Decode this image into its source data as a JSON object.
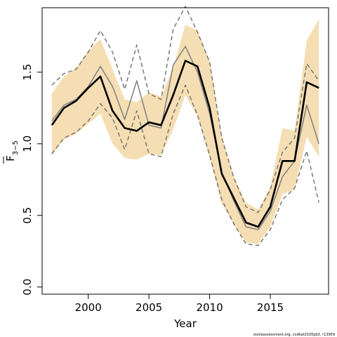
{
  "chart_data": {
    "type": "line",
    "xlabel": "Year",
    "ylabel": {
      "main": "F",
      "subscript": "3−5"
    },
    "xlim": [
      1996.2,
      2019.8
    ],
    "ylim": [
      -0.05,
      1.95
    ],
    "xticks": [
      2000,
      2005,
      2010,
      2015
    ],
    "yticks": [
      0.0,
      0.5,
      1.0,
      1.5
    ],
    "xtick_labels": [
      "2000",
      "2005",
      "2010",
      "2015"
    ],
    "ytick_labels": [
      "0.0",
      "0.5",
      "1.0",
      "1.5"
    ],
    "years": [
      1997,
      1998,
      1999,
      2000,
      2001,
      2002,
      2003,
      2004,
      2005,
      2006,
      2007,
      2008,
      2009,
      2010,
      2011,
      2012,
      2013,
      2014,
      2015,
      2016,
      2017,
      2018,
      2019
    ],
    "series": [
      {
        "role": "band",
        "color": "#f5deb3",
        "lower": [
          0.92,
          1.03,
          1.07,
          1.14,
          1.21,
          1.0,
          0.9,
          0.89,
          0.93,
          0.92,
          1.1,
          1.34,
          1.19,
          0.9,
          0.58,
          0.44,
          0.31,
          0.3,
          0.42,
          0.65,
          0.68,
          1.05,
          0.91
        ],
        "upper": [
          1.35,
          1.47,
          1.53,
          1.65,
          1.73,
          1.52,
          1.31,
          1.29,
          1.36,
          1.33,
          1.53,
          1.83,
          1.79,
          1.58,
          1.06,
          0.77,
          0.59,
          0.54,
          0.7,
          1.11,
          1.09,
          1.72,
          1.87
        ]
      },
      {
        "role": "dashed-upper",
        "color": "#707070",
        "values": [
          1.41,
          1.49,
          1.52,
          1.64,
          1.79,
          1.64,
          1.38,
          1.69,
          1.35,
          1.31,
          1.8,
          1.96,
          1.78,
          1.57,
          1.04,
          0.76,
          0.56,
          0.52,
          0.68,
          0.94,
          1.04,
          1.56,
          1.44
        ]
      },
      {
        "role": "dashed-lower",
        "color": "#707070",
        "values": [
          0.93,
          1.04,
          1.08,
          1.16,
          1.28,
          1.18,
          0.96,
          1.23,
          0.93,
          0.91,
          1.21,
          1.41,
          1.2,
          0.92,
          0.61,
          0.44,
          0.3,
          0.29,
          0.4,
          0.61,
          0.69,
          0.95,
          0.59
        ]
      },
      {
        "role": "grey-estimate",
        "color": "#7f7f7f",
        "values": [
          1.16,
          1.27,
          1.31,
          1.4,
          1.54,
          1.4,
          1.17,
          1.44,
          1.13,
          1.11,
          1.55,
          1.68,
          1.5,
          1.21,
          0.8,
          0.6,
          0.42,
          0.4,
          0.53,
          0.77,
          0.88,
          1.27,
          1.0
        ]
      },
      {
        "role": "main-estimate",
        "color": "#000000",
        "values": [
          1.13,
          1.25,
          1.3,
          1.39,
          1.47,
          1.23,
          1.11,
          1.09,
          1.15,
          1.13,
          1.34,
          1.58,
          1.54,
          1.25,
          0.79,
          0.62,
          0.45,
          0.42,
          0.56,
          0.88,
          0.88,
          1.43,
          1.39
        ]
      }
    ]
  },
  "credit": "stockassessment.org, codkat2020pb3, r13959"
}
